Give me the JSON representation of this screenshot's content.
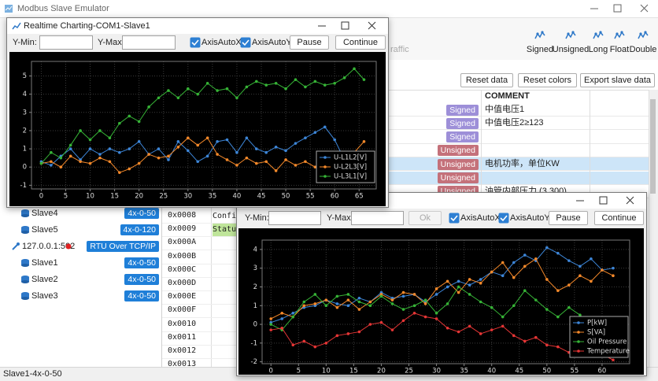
{
  "app_title": "Modbus Slave Emulator",
  "toolbar": {
    "partial_label": "raffic",
    "formats": [
      "Signed",
      "Unsigned",
      "Long",
      "Float",
      "Double"
    ]
  },
  "actions": [
    "Reset data",
    "Reset colors",
    "Export slave data"
  ],
  "table": {
    "comment_header": "COMMENT",
    "rows": [
      {
        "type": "Signed",
        "comment": "中值电压1"
      },
      {
        "type": "Signed",
        "comment": "中值电压2≥123"
      },
      {
        "type": "Signed"
      },
      {
        "type": "Unsigned"
      },
      {
        "type": "Unsigned",
        "comment": "电机功率，单位KW"
      },
      {
        "type": "Unsigned"
      },
      {
        "type": "Unsigned",
        "comment": "油管内部压力 (3,300)"
      }
    ]
  },
  "tree": [
    {
      "label": "Slave4",
      "range": "4x-0-50"
    },
    {
      "label": "Slave5",
      "range": "4x-0-120"
    },
    {
      "label": "127.0.0.1:502",
      "range": "RTU Over TCP/IP"
    },
    {
      "label": "Slave1",
      "range": "4x-0-50"
    },
    {
      "label": "Slave2",
      "range": "4x-0-50"
    },
    {
      "label": "Slave3",
      "range": "4x-0-50"
    }
  ],
  "registers": {
    "addresses": [
      "0x0008",
      "0x0009",
      "0x000A",
      "0x000B",
      "0x000C",
      "0x000D",
      "0x000E",
      "0x000F",
      "0x0010",
      "0x0011",
      "0x0012",
      "0x0013"
    ],
    "values": [
      "Confi",
      "Statu"
    ]
  },
  "status": "Slave1-4x-0-50",
  "windows": [
    {
      "title": "Realtime Charting-COM1-Slave1",
      "ymin_label": "Y-Min:",
      "ymax_label": "Y-Max:",
      "axis_auto_x": "AxisAutoX",
      "axis_auto_y": "AxisAutoY",
      "pause": "Pause",
      "continue": "Continue"
    },
    {
      "ymin_label": "Y-Min:",
      "ymax_label": "Y-Max:",
      "ok": "Ok",
      "axis_auto_x": "AxisAutoX",
      "axis_auto_y": "AxisAutoY",
      "pause": "Pause",
      "continue": "Continue"
    }
  ],
  "chart_data": [
    {
      "type": "line",
      "x": [
        0,
        2,
        4,
        6,
        8,
        10,
        12,
        14,
        16,
        18,
        20,
        22,
        24,
        26,
        28,
        30,
        32,
        34,
        36,
        38,
        40,
        42,
        44,
        46,
        48,
        50,
        52,
        54,
        56,
        58,
        60,
        62,
        64,
        66
      ],
      "series": [
        {
          "name": "U-L1L2[V]",
          "color": "#3d86d8",
          "values": [
            0.3,
            0.1,
            0.6,
            1.0,
            0.4,
            1.0,
            0.7,
            1.0,
            0.8,
            1.0,
            1.4,
            0.7,
            1.0,
            0.4,
            1.4,
            0.9,
            0.3,
            0.6,
            1.4,
            1.5,
            0.8,
            1.6,
            1.0,
            0.8,
            1.1,
            0.9,
            1.3,
            1.6,
            1.9,
            2.2,
            1.5,
            0.4,
            0.5,
            0.2
          ]
        },
        {
          "name": "U-L2L3[V]",
          "color": "#f5892a",
          "values": [
            0.2,
            0.3,
            0.0,
            0.6,
            0.3,
            0.2,
            0.5,
            0.3,
            -0.3,
            -0.1,
            0.2,
            0.7,
            0.5,
            0.6,
            1.1,
            1.6,
            1.2,
            1.6,
            0.7,
            0.4,
            0.1,
            0.5,
            0.2,
            0.3,
            -0.2,
            0.4,
            0.1,
            0.3,
            0.0,
            -0.4,
            -0.2,
            0.3,
            0.8,
            1.4
          ]
        },
        {
          "name": "U-L3L1[V]",
          "color": "#36b336",
          "values": [
            0.2,
            0.8,
            0.5,
            1.2,
            2.0,
            1.5,
            2.0,
            1.6,
            2.4,
            2.8,
            2.5,
            3.3,
            3.8,
            4.2,
            3.8,
            4.3,
            4.0,
            4.6,
            4.2,
            4.3,
            3.8,
            4.4,
            4.7,
            4.5,
            4.6,
            4.3,
            4.8,
            4.4,
            4.7,
            4.5,
            4.6,
            4.9,
            5.4,
            4.8
          ]
        }
      ],
      "xlim": [
        -2,
        68.5
      ],
      "ylim": [
        -1.2,
        5.8
      ],
      "xticks": [
        0,
        5,
        10,
        15,
        20,
        25,
        30,
        35,
        40,
        45,
        50,
        55,
        60,
        65
      ],
      "yticks": [
        -1,
        0,
        1,
        2,
        3,
        4,
        5
      ],
      "grid": true,
      "legend": "lower right"
    },
    {
      "type": "line",
      "x": [
        0,
        2,
        4,
        6,
        8,
        10,
        12,
        14,
        16,
        18,
        20,
        22,
        24,
        26,
        28,
        30,
        32,
        34,
        36,
        38,
        40,
        42,
        44,
        46,
        48,
        50,
        52,
        54,
        56,
        58,
        60,
        62
      ],
      "series": [
        {
          "name": "P[kW]",
          "color": "#3d86d8",
          "values": [
            0.1,
            0.3,
            0.6,
            0.9,
            1.0,
            1.3,
            1.1,
            1.0,
            1.4,
            1.2,
            1.7,
            1.4,
            1.5,
            1.6,
            1.2,
            1.6,
            2.0,
            2.3,
            2.1,
            2.4,
            2.8,
            2.6,
            3.3,
            3.7,
            3.4,
            4.1,
            3.8,
            3.4,
            3.1,
            3.5,
            2.9,
            3.0
          ]
        },
        {
          "name": "S[VA]",
          "color": "#f5892a",
          "values": [
            0.3,
            0.6,
            0.4,
            1.0,
            1.1,
            1.3,
            0.9,
            1.3,
            0.8,
            1.2,
            1.6,
            1.3,
            1.7,
            1.6,
            1.1,
            1.9,
            2.3,
            1.7,
            2.4,
            2.2,
            2.8,
            3.3,
            2.5,
            3.1,
            3.5,
            2.4,
            1.8,
            2.1,
            2.6,
            2.3,
            2.9,
            2.6
          ]
        },
        {
          "name": "Oil Pressure",
          "color": "#36b336",
          "values": [
            0.0,
            -0.3,
            0.4,
            1.2,
            1.6,
            1.0,
            1.5,
            1.6,
            1.2,
            1.0,
            1.5,
            1.1,
            0.8,
            1.0,
            1.3,
            0.6,
            1.1,
            2.0,
            1.6,
            1.2,
            0.9,
            0.4,
            1.0,
            1.8,
            1.3,
            0.8,
            0.4,
            0.9,
            0.5,
            -0.1,
            0.2,
            -0.4
          ]
        },
        {
          "name": "Temperature",
          "color": "#e53535",
          "values": [
            -0.3,
            -0.2,
            -1.1,
            -0.9,
            -1.2,
            -1.0,
            -0.6,
            -0.5,
            -0.4,
            0.0,
            0.1,
            -0.3,
            0.2,
            0.6,
            0.4,
            0.3,
            -0.2,
            -0.4,
            -0.1,
            -0.5,
            -0.3,
            -0.1,
            -0.6,
            -0.9,
            -0.7,
            -1.1,
            -1.2,
            -1.5,
            -1.4,
            -1.5,
            -1.6,
            -1.9
          ]
        }
      ],
      "xlim": [
        -1.6,
        65
      ],
      "ylim": [
        -2.1,
        4.5
      ],
      "xticks": [
        0,
        5,
        10,
        15,
        20,
        25,
        30,
        35,
        40,
        45,
        50,
        55,
        60
      ],
      "yticks": [
        -2,
        -1,
        0,
        1,
        2,
        3,
        4
      ],
      "grid": true,
      "legend": "lower right"
    }
  ]
}
